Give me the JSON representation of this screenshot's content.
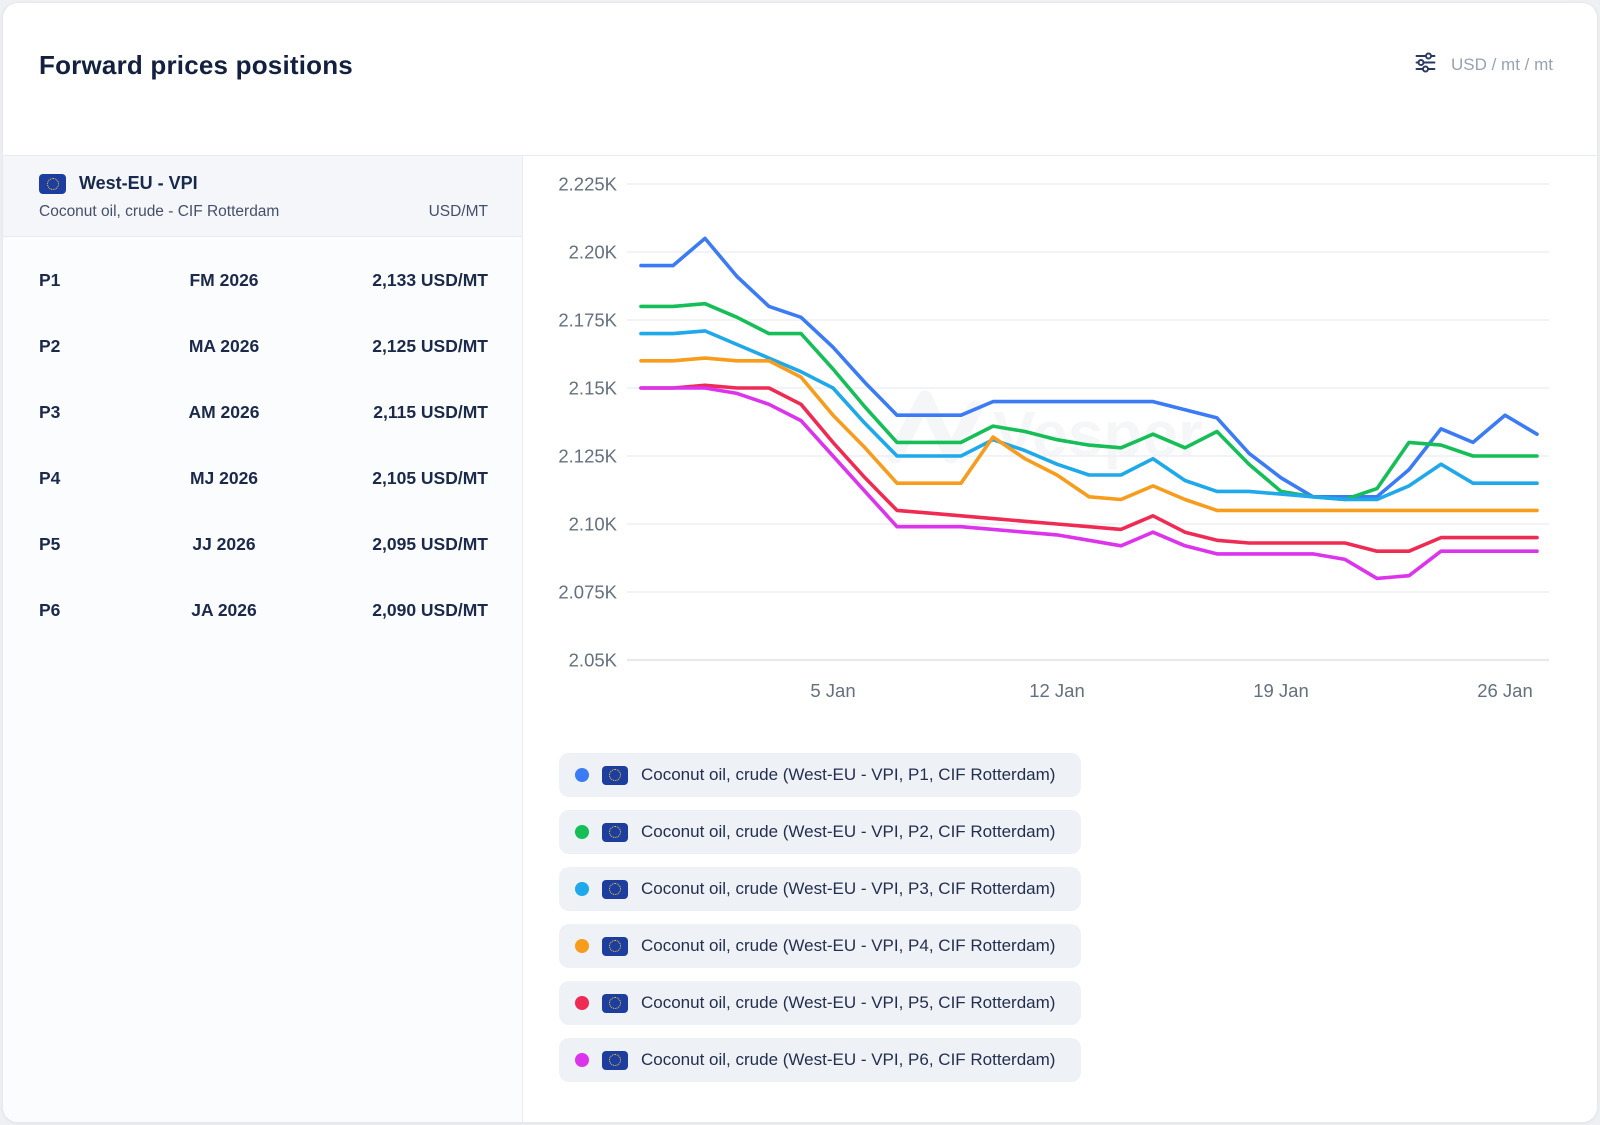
{
  "header": {
    "title": "Forward prices positions",
    "unit_selector": "USD / mt / mt"
  },
  "positions": {
    "region": "West-EU - VPI",
    "product": "Coconut oil, crude - CIF Rotterdam",
    "unit": "USD/MT",
    "flag": "eu-flag",
    "rows": [
      {
        "position": "P1",
        "period": "FM 2026",
        "price": "2,133 USD/MT"
      },
      {
        "position": "P2",
        "period": "MA 2026",
        "price": "2,125 USD/MT"
      },
      {
        "position": "P3",
        "period": "AM 2026",
        "price": "2,115 USD/MT"
      },
      {
        "position": "P4",
        "period": "MJ 2026",
        "price": "2,105 USD/MT"
      },
      {
        "position": "P5",
        "period": "JJ 2026",
        "price": "2,095 USD/MT"
      },
      {
        "position": "P6",
        "period": "JA 2026",
        "price": "2,090 USD/MT"
      }
    ]
  },
  "chart_data": {
    "type": "line",
    "title": "",
    "xlabel": "",
    "ylabel": "",
    "unit": "USD/MT",
    "watermark": "Vesper",
    "grid": true,
    "legend_position": "bottom",
    "ylim": [
      2050,
      2225
    ],
    "y_ticks": [
      "2.225K",
      "2.20K",
      "2.175K",
      "2.15K",
      "2.125K",
      "2.10K",
      "2.075K",
      "2.05K"
    ],
    "y_tick_values": [
      2225,
      2200,
      2175,
      2150,
      2125,
      2100,
      2075,
      2050
    ],
    "x": [
      "30 Dec",
      "31 Dec",
      "1 Jan",
      "2 Jan",
      "3 Jan",
      "4 Jan",
      "5 Jan",
      "6 Jan",
      "7 Jan",
      "8 Jan",
      "9 Jan",
      "10 Jan",
      "11 Jan",
      "12 Jan",
      "13 Jan",
      "14 Jan",
      "15 Jan",
      "16 Jan",
      "17 Jan",
      "18 Jan",
      "19 Jan",
      "20 Jan",
      "21 Jan",
      "22 Jan",
      "23 Jan",
      "24 Jan",
      "25 Jan",
      "26 Jan",
      "27 Jan"
    ],
    "x_ticks": [
      {
        "label": "5 Jan",
        "index": 6
      },
      {
        "label": "12 Jan",
        "index": 13
      },
      {
        "label": "19 Jan",
        "index": 20
      },
      {
        "label": "26 Jan",
        "index": 27
      }
    ],
    "series": [
      {
        "name": "P1",
        "color": "#3C7BF6",
        "values": [
          2195,
          2195,
          2205,
          2191,
          2180,
          2176,
          2165,
          2152,
          2140,
          2140,
          2140,
          2145,
          2145,
          2145,
          2145,
          2145,
          2145,
          2142,
          2139,
          2126,
          2117,
          2110,
          2110,
          2110,
          2120,
          2135,
          2130,
          2140,
          2133
        ]
      },
      {
        "name": "P2",
        "color": "#16BE58",
        "values": [
          2180,
          2180,
          2181,
          2176,
          2170,
          2170,
          2157,
          2143,
          2130,
          2130,
          2130,
          2136,
          2134,
          2131,
          2129,
          2128,
          2133,
          2128,
          2134,
          2122,
          2112,
          2110,
          2109,
          2113,
          2130,
          2129,
          2125,
          2125,
          2125
        ]
      },
      {
        "name": "P3",
        "color": "#1FA8EA",
        "values": [
          2170,
          2170,
          2171,
          2166,
          2161,
          2156,
          2150,
          2137,
          2125,
          2125,
          2125,
          2131,
          2127,
          2122,
          2118,
          2118,
          2124,
          2116,
          2112,
          2112,
          2111,
          2110,
          2109,
          2109,
          2114,
          2122,
          2115,
          2115,
          2115
        ]
      },
      {
        "name": "P4",
        "color": "#F79C1D",
        "values": [
          2160,
          2160,
          2161,
          2160,
          2160,
          2154,
          2140,
          2128,
          2115,
          2115,
          2115,
          2132,
          2124,
          2118,
          2110,
          2109,
          2114,
          2109,
          2105,
          2105,
          2105,
          2105,
          2105,
          2105,
          2105,
          2105,
          2105,
          2105,
          2105
        ]
      },
      {
        "name": "P5",
        "color": "#EF2B53",
        "values": [
          2150,
          2150,
          2151,
          2150,
          2150,
          2144,
          2130,
          2117,
          2105,
          2104,
          2103,
          2102,
          2101,
          2100,
          2099,
          2098,
          2103,
          2097,
          2094,
          2093,
          2093,
          2093,
          2093,
          2090,
          2090,
          2095,
          2095,
          2095,
          2095
        ]
      },
      {
        "name": "P6",
        "color": "#DC33EC",
        "values": [
          2150,
          2150,
          2150,
          2148,
          2144,
          2138,
          2125,
          2112,
          2099,
          2099,
          2099,
          2098,
          2097,
          2096,
          2094,
          2092,
          2097,
          2092,
          2089,
          2089,
          2089,
          2089,
          2087,
          2080,
          2081,
          2090,
          2090,
          2090,
          2090
        ]
      }
    ]
  },
  "legend": {
    "items": [
      {
        "series": "P1",
        "dot_color": "#3C7BF6",
        "label": "Coconut oil, crude (West-EU - VPI, P1, CIF Rotterdam)"
      },
      {
        "series": "P2",
        "dot_color": "#16BE58",
        "label": "Coconut oil, crude (West-EU - VPI, P2, CIF Rotterdam)"
      },
      {
        "series": "P3",
        "dot_color": "#1FA8EA",
        "label": "Coconut oil, crude (West-EU - VPI, P3, CIF Rotterdam)"
      },
      {
        "series": "P4",
        "dot_color": "#F79C1D",
        "label": "Coconut oil, crude (West-EU - VPI, P4, CIF Rotterdam)"
      },
      {
        "series": "P5",
        "dot_color": "#EF2B53",
        "label": "Coconut oil, crude (West-EU - VPI, P5, CIF Rotterdam)"
      },
      {
        "series": "P6",
        "dot_color": "#DC33EC",
        "label": "Coconut oil, crude (West-EU - VPI, P6, CIF Rotterdam)"
      }
    ]
  }
}
